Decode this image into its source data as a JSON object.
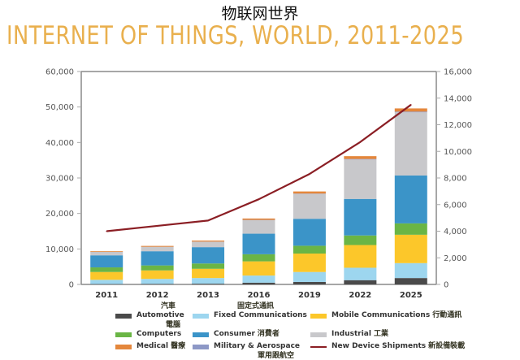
{
  "header": {
    "chinese_title": "物联网世界",
    "title": "INTERNET OF THINGS, WORLD, 2011-2025"
  },
  "chart_data": {
    "type": "bar",
    "stacked": true,
    "title": "INTERNET OF THINGS, WORLD, 2011-2025",
    "subtitle": "物联网世界",
    "xlabel": "",
    "ylabel": "",
    "y2label": "",
    "categories": [
      "2011",
      "2012",
      "2013",
      "2016",
      "2019",
      "2022",
      "2025"
    ],
    "ylim": [
      0,
      60000
    ],
    "yticks": [
      "0",
      "10,000",
      "20,000",
      "30,000",
      "40,000",
      "50,000",
      "60,000"
    ],
    "y2lim": [
      0,
      16000
    ],
    "y2ticks": [
      "0",
      "2,000",
      "4,000",
      "6,000",
      "8,000",
      "10,000",
      "12,000",
      "14,000",
      "16,000"
    ],
    "grid": false,
    "legend_position": "bottom",
    "series": [
      {
        "name": "Automotive",
        "name_cn": "汽車",
        "color": "#4a4a4a",
        "values": [
          100,
          150,
          200,
          500,
          700,
          1200,
          1800
        ]
      },
      {
        "name": "Fixed Communications",
        "name_cn": "固定式通訊",
        "color": "#9dd6ef",
        "values": [
          1200,
          1400,
          1600,
          2000,
          2800,
          3500,
          4200
        ]
      },
      {
        "name": "Mobile Communications",
        "name_cn": "行動通訊",
        "color": "#fcc72a",
        "values": [
          2200,
          2400,
          2600,
          4000,
          5200,
          6400,
          8000
        ]
      },
      {
        "name": "Computers",
        "name_cn": "電腦",
        "color": "#6ab545",
        "values": [
          1300,
          1400,
          1500,
          2000,
          2200,
          2700,
          3200
        ]
      },
      {
        "name": "Consumer",
        "name_cn": "消費者",
        "color": "#3b94c8",
        "values": [
          3400,
          4000,
          4600,
          5800,
          7600,
          10300,
          13500
        ]
      },
      {
        "name": "Industrial",
        "name_cn": "工業",
        "color": "#c8c8cb",
        "values": [
          900,
          1200,
          1500,
          3800,
          7000,
          11100,
          17800
        ]
      },
      {
        "name": "Military & Aerospace",
        "name_cn": "軍用跟航空",
        "color": "#8d98c6",
        "values": [
          50,
          50,
          60,
          80,
          100,
          150,
          200
        ]
      },
      {
        "name": "Medical",
        "name_cn": "醫療",
        "color": "#e4873c",
        "values": [
          200,
          250,
          300,
          400,
          600,
          800,
          900
        ]
      }
    ],
    "line_series": {
      "name": "New Device Shipments",
      "name_cn": "新設備裝載",
      "color": "#8b1e24",
      "axis": "right",
      "values": [
        4000,
        4400,
        4800,
        6400,
        8300,
        10700,
        13500
      ]
    }
  },
  "legend": {
    "items": [
      {
        "label": "Automotive",
        "cn": "汽車"
      },
      {
        "label": "Fixed Communications",
        "cn": "固定式通訊"
      },
      {
        "label": "Mobile Communications",
        "cn": "行動通訊"
      },
      {
        "label": "Computers",
        "cn": "電腦"
      },
      {
        "label": "Consumer",
        "cn": "消費者"
      },
      {
        "label": "Industrial",
        "cn": "工業"
      },
      {
        "label": "Medical",
        "cn": "醫療"
      },
      {
        "label": "Military & Aerospace",
        "cn": "軍用跟航空"
      },
      {
        "label": "New Device Shipments",
        "cn": "新設備裝載"
      }
    ]
  }
}
